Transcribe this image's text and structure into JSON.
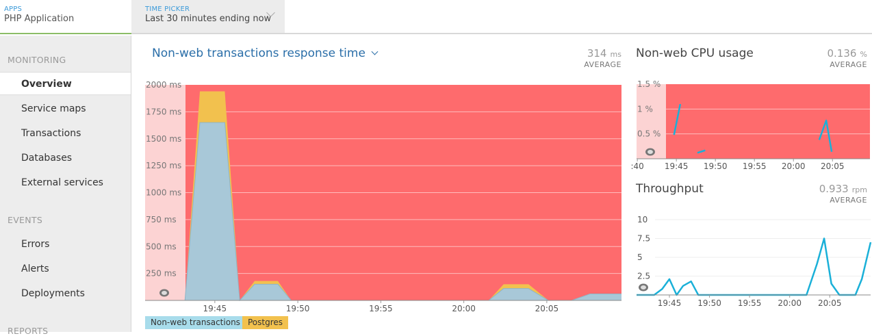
{
  "header": {
    "apps_label": "APPS",
    "app_name": "PHP Application",
    "time_picker_label": "TIME PICKER",
    "time_picker_value": "Last 30 minutes ending now"
  },
  "sidebar": {
    "monitoring_label": "MONITORING",
    "monitoring_items": [
      "Overview",
      "Service maps",
      "Transactions",
      "Databases",
      "External services"
    ],
    "events_label": "EVENTS",
    "events_items": [
      "Errors",
      "Alerts",
      "Deployments"
    ],
    "reports_label": "REPORTS"
  },
  "colors": {
    "alert_red": "#fe6b6d",
    "alert_faded": "#fcd3d3",
    "nonweb": "#a8c8d8",
    "postgres": "#f2c14e",
    "line_blue": "#1ab0d8",
    "accent_blue": "#2a6ea8"
  },
  "response_panel": {
    "title": "Non-web transactions response time",
    "stat_value": "314",
    "stat_unit": "ms",
    "stat_label": "AVERAGE",
    "legend": [
      "Non-web transactions",
      "Postgres"
    ]
  },
  "cpu_panel": {
    "title": "Non-web CPU usage",
    "stat_value": "0.136",
    "stat_unit": "%",
    "stat_label": "AVERAGE"
  },
  "throughput_panel": {
    "title": "Throughput",
    "stat_value": "0.933",
    "stat_unit": "rpm",
    "stat_label": "AVERAGE"
  },
  "chart_data": [
    {
      "type": "area",
      "title": "Non-web transactions response time",
      "ylabel": "",
      "y_unit": "ms",
      "ylim": [
        0,
        2000
      ],
      "y_ticks": [
        "250 ms",
        "500 ms",
        "750 ms",
        "1000 ms",
        "1250 ms",
        "1500 ms",
        "1750 ms",
        "2000 ms"
      ],
      "y_tick_values": [
        250,
        500,
        750,
        1000,
        1250,
        1500,
        1750,
        2000
      ],
      "x_ticks": [
        "19:45",
        "19:50",
        "19:55",
        "20:00",
        "20:05"
      ],
      "x_tick_minutes": [
        45,
        50,
        55,
        60,
        65
      ],
      "xlim_minutes": [
        40.8,
        69.5
      ],
      "stacked": true,
      "series": [
        {
          "name": "Non-web transactions",
          "x_minutes": [
            40.8,
            43.2,
            44.1,
            45.6,
            46.5,
            47.4,
            48.8,
            49.6,
            61.5,
            62.4,
            63.9,
            65.1,
            66.5,
            67.6,
            69.5
          ],
          "values": [
            0,
            0,
            1650,
            1650,
            0,
            150,
            150,
            0,
            0,
            110,
            110,
            0,
            0,
            60,
            60
          ]
        },
        {
          "name": "Postgres",
          "x_minutes": [
            40.8,
            43.2,
            44.1,
            45.6,
            46.5,
            47.4,
            48.8,
            49.6,
            61.5,
            62.4,
            63.9,
            65.1,
            66.5,
            67.6,
            69.5
          ],
          "values": [
            0,
            0,
            290,
            290,
            0,
            30,
            30,
            0,
            0,
            40,
            40,
            0,
            0,
            0,
            0
          ]
        }
      ],
      "background": "alert"
    },
    {
      "type": "line",
      "title": "Non-web CPU usage",
      "ylim": [
        0,
        1.5
      ],
      "y_ticks": [
        "0.5 %",
        "1 %",
        "1.5 %"
      ],
      "y_tick_values": [
        0.5,
        1.0,
        1.5
      ],
      "x_ticks": [
        ":40",
        "19:45",
        "19:50",
        "19:55",
        "20:00",
        "20:05"
      ],
      "x_tick_minutes": [
        40,
        45,
        50,
        55,
        60,
        65
      ],
      "xlim_minutes": [
        39.9,
        69.8
      ],
      "series": [
        {
          "segments": [
            {
              "x_minutes": [
                44.7,
                45.5
              ],
              "values": [
                0.48,
                1.1
              ]
            },
            {
              "x_minutes": [
                47.7,
                48.7
              ],
              "values": [
                0.12,
                0.17
              ]
            },
            {
              "x_minutes": [
                63.3,
                64.2,
                64.9
              ],
              "values": [
                0.38,
                0.77,
                0.14
              ]
            }
          ]
        }
      ],
      "background": "alert"
    },
    {
      "type": "line",
      "title": "Throughput",
      "ylim": [
        0,
        10
      ],
      "y_ticks": [
        "2.5",
        "5",
        "7.5",
        "10"
      ],
      "y_tick_values": [
        2.5,
        5,
        7.5,
        10
      ],
      "x_ticks": [
        "19:45",
        "19:50",
        "19:55",
        "20:00",
        "20:05"
      ],
      "x_tick_minutes": [
        45,
        50,
        55,
        60,
        65
      ],
      "xlim_minutes": [
        40.9,
        70.1
      ],
      "series": [
        {
          "x_minutes": [
            40.9,
            43.1,
            44.1,
            45.0,
            45.9,
            46.7,
            47.7,
            48.6,
            49.6,
            61.1,
            62.1,
            63.4,
            64.3,
            65.2,
            66.2,
            67.1,
            68.2,
            69.0,
            70.1
          ],
          "values": [
            0,
            0,
            0.8,
            2.1,
            0,
            1.2,
            1.8,
            0,
            0,
            0,
            0,
            4.1,
            7.5,
            1.5,
            0,
            0,
            0,
            2.1,
            7.0
          ]
        }
      ]
    }
  ]
}
